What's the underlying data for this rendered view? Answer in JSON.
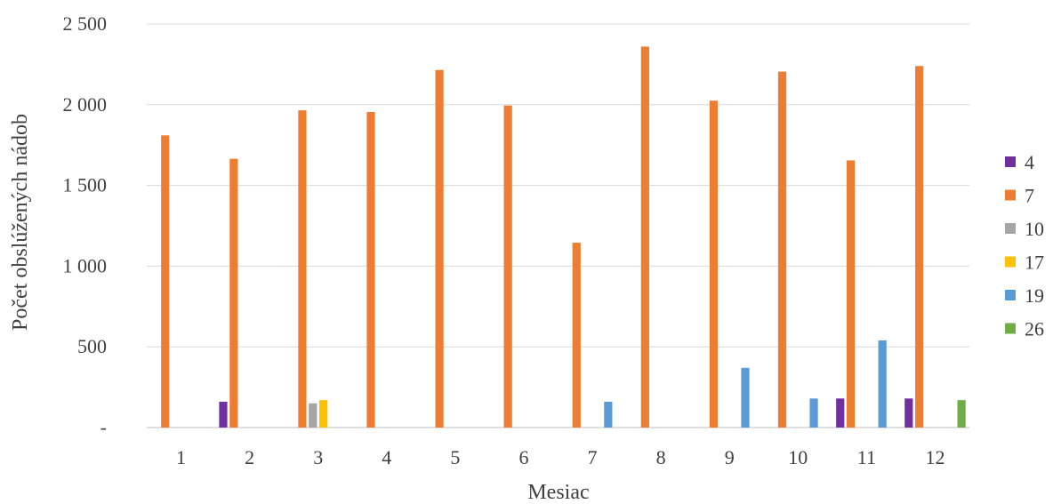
{
  "chart_data": {
    "type": "bar",
    "title": "",
    "xlabel": "Mesiac",
    "ylabel": "Počet obslúžených nádob",
    "categories": [
      "1",
      "2",
      "3",
      "4",
      "5",
      "6",
      "7",
      "8",
      "9",
      "10",
      "11",
      "12"
    ],
    "ylim": [
      0,
      2500
    ],
    "yticks": [
      {
        "value": 0,
        "label": "-"
      },
      {
        "value": 500,
        "label": "500"
      },
      {
        "value": 1000,
        "label": "1 000"
      },
      {
        "value": 1500,
        "label": "1 500"
      },
      {
        "value": 2000,
        "label": "2 000"
      },
      {
        "value": 2500,
        "label": "2 500"
      }
    ],
    "grid": true,
    "legend": "right",
    "series": [
      {
        "name": "4",
        "color": "#7030A0",
        "values": [
          0,
          160,
          0,
          0,
          0,
          0,
          0,
          0,
          0,
          0,
          180,
          180
        ]
      },
      {
        "name": "7",
        "color": "#ED7D31",
        "values": [
          1810,
          1665,
          1965,
          1955,
          2215,
          1995,
          1145,
          2360,
          2025,
          2205,
          1655,
          2240
        ]
      },
      {
        "name": "10",
        "color": "#A5A5A5",
        "values": [
          0,
          0,
          150,
          0,
          0,
          0,
          0,
          0,
          0,
          0,
          0,
          0
        ]
      },
      {
        "name": "17",
        "color": "#FFC000",
        "values": [
          0,
          0,
          170,
          0,
          0,
          0,
          0,
          0,
          0,
          0,
          0,
          0
        ]
      },
      {
        "name": "19",
        "color": "#5B9BD5",
        "values": [
          0,
          0,
          0,
          0,
          0,
          0,
          160,
          0,
          370,
          180,
          540,
          0
        ]
      },
      {
        "name": "26",
        "color": "#70AD47",
        "values": [
          0,
          0,
          0,
          0,
          0,
          0,
          0,
          0,
          0,
          0,
          0,
          170
        ]
      }
    ]
  }
}
